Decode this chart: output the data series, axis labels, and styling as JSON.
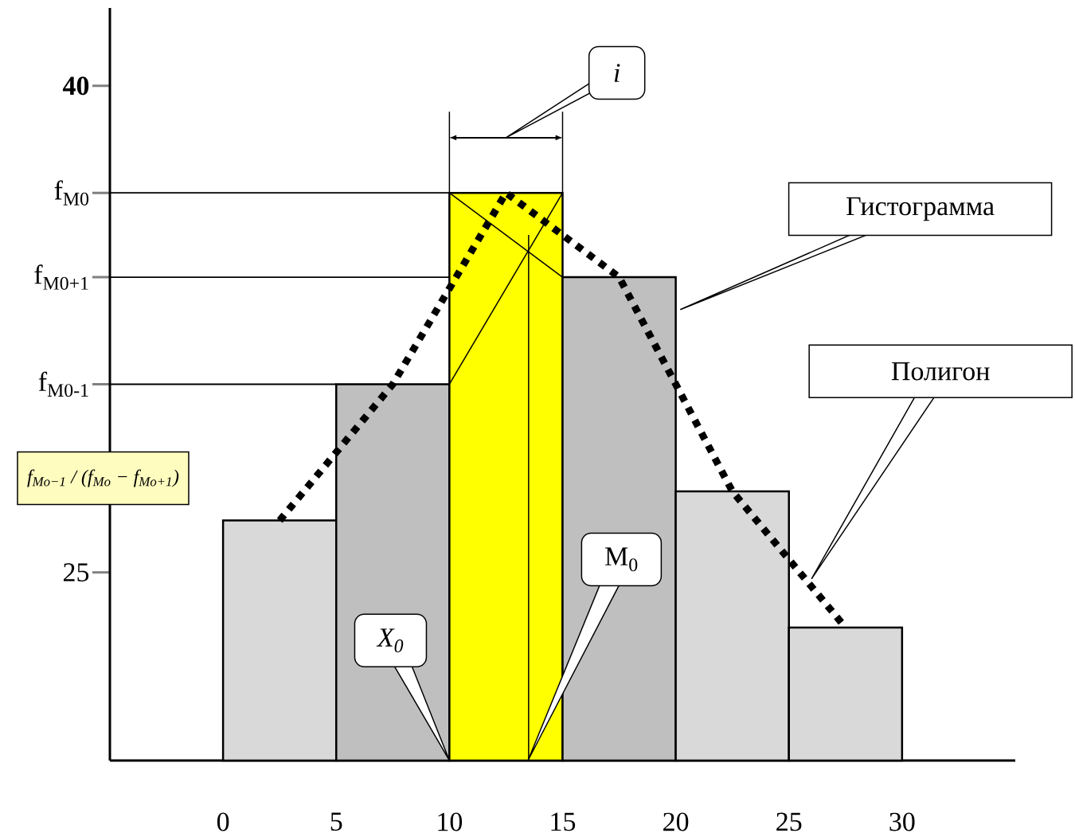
{
  "chart_data": {
    "type": "histogram",
    "bins": [
      0,
      5,
      10,
      15,
      20,
      25,
      30
    ],
    "values": [
      26.6,
      30.8,
      36.7,
      34.1,
      27.5,
      23.3
    ],
    "colors": [
      "#d9d9d9",
      "#bfbfbf",
      "#ffff00",
      "#bfbfbf",
      "#d9d9d9",
      "#d9d9d9"
    ],
    "xlim": [
      -5,
      35
    ],
    "ylim": [
      19.2,
      42.4
    ],
    "xticks": [
      0,
      5,
      10,
      15,
      20,
      25,
      30
    ],
    "yticks": [
      {
        "value": 25,
        "label": "25"
      },
      {
        "value": 30.8,
        "label": "f$_{M0-1}$"
      },
      {
        "value": 34.1,
        "label": "f$_{M0+1}$"
      },
      {
        "value": 36.7,
        "label": "f$_{M0}$"
      },
      {
        "value": 40,
        "label": "**40**"
      }
    ],
    "series": [
      {
        "type": "line",
        "color": "#000000",
        "line_style": "dotted",
        "x": [
          2.5,
          7.5,
          12.5,
          17.5,
          22.5,
          27.5
        ],
        "values": [
          26.6,
          30.8,
          36.7,
          34.1,
          27.5,
          23.3
        ]
      },
      {
        "type": "line",
        "color": "#000000",
        "line_style": "solid",
        "x": [
          10,
          15
        ],
        "values": [
          36.7,
          34.1
        ]
      },
      {
        "type": "line",
        "color": "#000000",
        "line_style": "solid",
        "x": [
          10,
          15
        ],
        "values": [
          30.8,
          36.7
        ]
      },
      {
        "type": "line",
        "color": "#000000",
        "line_style": "solid",
        "x": [
          13.5,
          13.5
        ],
        "values": [
          35.4,
          19.2
        ]
      }
    ],
    "ref_lines": [
      {
        "axis": "y",
        "value": 36.7
      },
      {
        "axis": "y",
        "value": 34.1
      },
      {
        "axis": "y",
        "value": 30.8
      }
    ],
    "annotations": [
      "i",
      "Гистограмма",
      "Полигон",
      "X$_{0}$",
      "M$_{0}$",
      "f$_{Mo−1}$ / (f$_{Mo}$ − f$_{Mo+1}$)"
    ]
  }
}
